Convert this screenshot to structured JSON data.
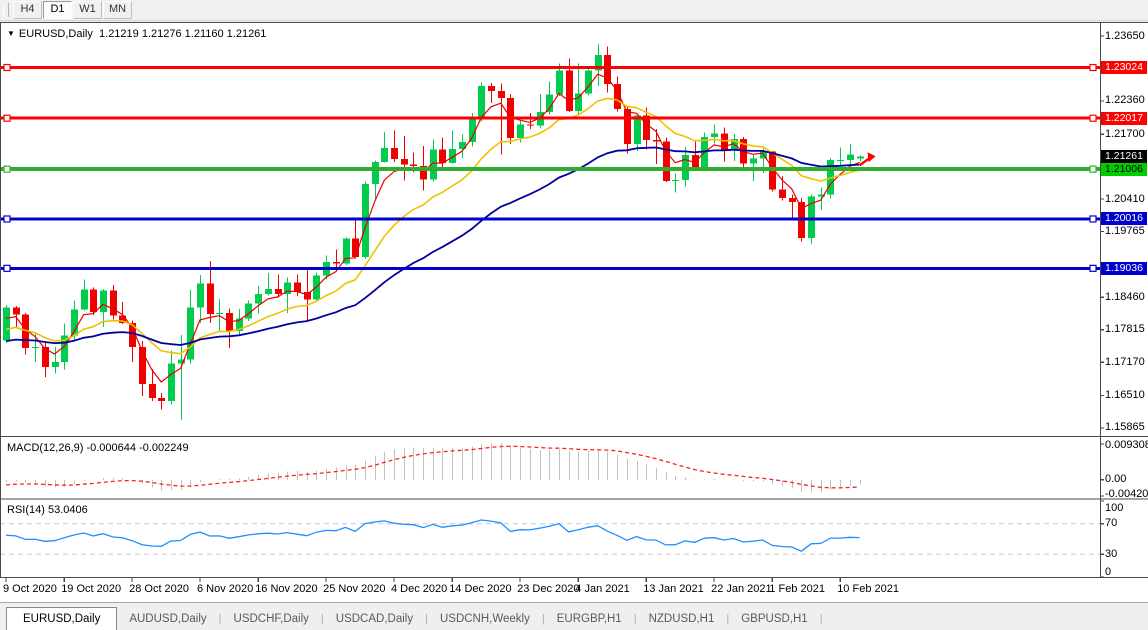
{
  "toolbar": {
    "buttons": [
      {
        "label": "H4",
        "active": false
      },
      {
        "label": "D1",
        "active": true
      },
      {
        "label": "W1",
        "active": false
      },
      {
        "label": "MN",
        "active": false
      }
    ]
  },
  "chart": {
    "title_symbol": "EURUSD,Daily",
    "title_ohlc": "1.21219 1.21276 1.21160 1.21261"
  },
  "chart_data": {
    "type": "candlestick",
    "symbol": "EURUSD",
    "timeframe": "Daily",
    "up_color": "#00cc4e",
    "down_color": "#f20000",
    "candles": [
      [
        1.176,
        1.1831,
        1.1755,
        1.1826
      ],
      [
        1.1826,
        1.1829,
        1.1785,
        1.1812
      ],
      [
        1.1812,
        1.1815,
        1.1732,
        1.1745
      ],
      [
        1.1745,
        1.1775,
        1.1718,
        1.1747
      ],
      [
        1.1747,
        1.1758,
        1.1688,
        1.1708
      ],
      [
        1.1708,
        1.1747,
        1.1695,
        1.1718
      ],
      [
        1.1718,
        1.1794,
        1.1703,
        1.177
      ],
      [
        1.177,
        1.184,
        1.176,
        1.1822
      ],
      [
        1.1822,
        1.1881,
        1.182,
        1.1862
      ],
      [
        1.1862,
        1.1866,
        1.1811,
        1.1817
      ],
      [
        1.1817,
        1.1863,
        1.1787,
        1.186
      ],
      [
        1.186,
        1.187,
        1.1802,
        1.181
      ],
      [
        1.181,
        1.1837,
        1.1793,
        1.1795
      ],
      [
        1.1795,
        1.18,
        1.1718,
        1.1747
      ],
      [
        1.1747,
        1.1759,
        1.165,
        1.1674
      ],
      [
        1.1674,
        1.1704,
        1.164,
        1.1646
      ],
      [
        1.1646,
        1.1656,
        1.1623,
        1.164
      ],
      [
        1.164,
        1.174,
        1.1633,
        1.1715
      ],
      [
        1.1715,
        1.1771,
        1.1602,
        1.1723
      ],
      [
        1.1723,
        1.1861,
        1.1715,
        1.1826
      ],
      [
        1.1826,
        1.189,
        1.1795,
        1.1873
      ],
      [
        1.1873,
        1.1918,
        1.1795,
        1.1813
      ],
      [
        1.1813,
        1.1843,
        1.178,
        1.1815
      ],
      [
        1.1815,
        1.1824,
        1.1745,
        1.1779
      ],
      [
        1.1779,
        1.1823,
        1.1771,
        1.1804
      ],
      [
        1.1804,
        1.184,
        1.1799,
        1.1834
      ],
      [
        1.1834,
        1.1869,
        1.1814,
        1.1853
      ],
      [
        1.1853,
        1.1894,
        1.185,
        1.1863
      ],
      [
        1.1863,
        1.1891,
        1.1846,
        1.1853
      ],
      [
        1.1853,
        1.1885,
        1.1815,
        1.1875
      ],
      [
        1.1875,
        1.1891,
        1.1849,
        1.1857
      ],
      [
        1.1857,
        1.1906,
        1.18,
        1.1842
      ],
      [
        1.1842,
        1.1895,
        1.1838,
        1.1889
      ],
      [
        1.1889,
        1.1929,
        1.1881,
        1.1916
      ],
      [
        1.1916,
        1.1941,
        1.1906,
        1.1913
      ],
      [
        1.1913,
        1.1965,
        1.191,
        1.1963
      ],
      [
        1.1963,
        1.2003,
        1.1923,
        1.1926
      ],
      [
        1.1926,
        1.2076,
        1.1922,
        1.2071
      ],
      [
        1.2071,
        1.2118,
        1.204,
        1.2115
      ],
      [
        1.2115,
        1.2174,
        1.2114,
        1.2143
      ],
      [
        1.2143,
        1.2177,
        1.2115,
        1.2121
      ],
      [
        1.2121,
        1.2166,
        1.2078,
        1.211
      ],
      [
        1.211,
        1.2134,
        1.2095,
        1.2107
      ],
      [
        1.2107,
        1.2147,
        1.2058,
        1.208
      ],
      [
        1.208,
        1.2159,
        1.2076,
        1.214
      ],
      [
        1.214,
        1.2163,
        1.2103,
        1.2113
      ],
      [
        1.2113,
        1.2177,
        1.2112,
        1.2141
      ],
      [
        1.2141,
        1.2169,
        1.2123,
        1.2154
      ],
      [
        1.2154,
        1.2212,
        1.2146,
        1.22
      ],
      [
        1.22,
        1.2273,
        1.2195,
        1.2266
      ],
      [
        1.2266,
        1.2272,
        1.2232,
        1.2256
      ],
      [
        1.2256,
        1.2271,
        1.213,
        1.2242
      ],
      [
        1.2242,
        1.225,
        1.2151,
        1.2162
      ],
      [
        1.2162,
        1.2196,
        1.2153,
        1.2189
      ],
      [
        1.2189,
        1.2212,
        1.218,
        1.2187
      ],
      [
        1.2187,
        1.225,
        1.2181,
        1.2214
      ],
      [
        1.2214,
        1.2275,
        1.2209,
        1.2249
      ],
      [
        1.2249,
        1.231,
        1.2246,
        1.2296
      ],
      [
        1.2296,
        1.232,
        1.2214,
        1.2216
      ],
      [
        1.2216,
        1.231,
        1.2208,
        1.2251
      ],
      [
        1.2251,
        1.2302,
        1.2247,
        1.2296
      ],
      [
        1.2296,
        1.2349,
        1.2266,
        1.2327
      ],
      [
        1.2327,
        1.2344,
        1.2253,
        1.227
      ],
      [
        1.227,
        1.2285,
        1.2215,
        1.222
      ],
      [
        1.222,
        1.2224,
        1.2132,
        1.2151
      ],
      [
        1.2151,
        1.2208,
        1.2137,
        1.2207
      ],
      [
        1.2207,
        1.2223,
        1.214,
        1.2158
      ],
      [
        1.2158,
        1.218,
        1.2111,
        1.2155
      ],
      [
        1.2155,
        1.2163,
        1.2075,
        1.2077
      ],
      [
        1.2077,
        1.2092,
        1.2054,
        1.2079
      ],
      [
        1.2079,
        1.2145,
        1.2066,
        1.2129
      ],
      [
        1.2129,
        1.2158,
        1.2101,
        1.2105
      ],
      [
        1.2105,
        1.2173,
        1.2103,
        1.2164
      ],
      [
        1.2164,
        1.2189,
        1.2152,
        1.2171
      ],
      [
        1.2171,
        1.2183,
        1.2116,
        1.214
      ],
      [
        1.214,
        1.217,
        1.2117,
        1.216
      ],
      [
        1.216,
        1.2164,
        1.2105,
        1.2112
      ],
      [
        1.2112,
        1.2131,
        1.2077,
        1.2122
      ],
      [
        1.2122,
        1.2142,
        1.2093,
        1.2136
      ],
      [
        1.2136,
        1.2137,
        1.2056,
        1.206
      ],
      [
        1.206,
        1.2087,
        1.2038,
        1.2043
      ],
      [
        1.2043,
        1.205,
        1.2003,
        1.2035
      ],
      [
        1.2035,
        1.2043,
        1.1957,
        1.1964
      ],
      [
        1.1964,
        1.205,
        1.1952,
        1.2046
      ],
      [
        1.2046,
        1.2064,
        1.2019,
        1.205
      ],
      [
        1.205,
        1.2123,
        1.2042,
        1.2119
      ],
      [
        1.2119,
        1.2144,
        1.2108,
        1.2119
      ],
      [
        1.2119,
        1.2151,
        1.211,
        1.213
      ],
      [
        1.21219,
        1.21276,
        1.2116,
        1.21261
      ]
    ],
    "price_ticks": [
      "1.23650",
      "1.22360",
      "1.21700",
      "1.20410",
      "1.19765",
      "1.18460",
      "1.17815",
      "1.17170",
      "1.16510",
      "1.15865"
    ],
    "hlines": [
      {
        "price": 1.23024,
        "label": "1.23024",
        "color": "#ff0000",
        "badge_bg": "#ff0000",
        "badge_fg": "#ffffff",
        "width": 3
      },
      {
        "price": 1.22017,
        "label": "1.22017",
        "color": "#ff0000",
        "badge_bg": "#ff0000",
        "badge_fg": "#ffffff",
        "width": 3
      },
      {
        "price": 1.21006,
        "label": "1.21006",
        "color": "#30ae30",
        "badge_bg": "#00cc00",
        "badge_fg": "#000000",
        "width": 4
      },
      {
        "price": 1.20016,
        "label": "1.20016",
        "color": "#0000cc",
        "badge_bg": "#0000cc",
        "badge_fg": "#ffffff",
        "width": 3
      },
      {
        "price": 1.19036,
        "label": "1.19036",
        "color": "#0000cc",
        "badge_bg": "#0000cc",
        "badge_fg": "#ffffff",
        "width": 3
      }
    ],
    "current_price": {
      "value": 1.21261,
      "label": "1.21261",
      "badge_bg": "#000000",
      "badge_fg": "#ffffff",
      "arrow_color": "#ff0000"
    },
    "moving_averages": [
      {
        "name": "ma-fast",
        "period": 4,
        "seed": 1.179,
        "color": "#e60000",
        "width": 1.2
      },
      {
        "name": "ma-medium",
        "period": 13,
        "seed": 1.1775,
        "color": "#eec200",
        "width": 1.6
      },
      {
        "name": "ma-slow",
        "period": 34,
        "seed": 1.1755,
        "color": "#0000a0",
        "width": 1.8
      }
    ],
    "macd": {
      "label": "MACD(12,26,9) -0.000644 -0.002249",
      "fast": 12,
      "slow": 26,
      "signal": 9,
      "seed_fast": 1.1788,
      "seed_slow": 1.1798,
      "seed_signal": -0.0015,
      "axis_max": 0.009308,
      "axis_min": -0.004204,
      "axis_labels": [
        "0.009308",
        "0.00",
        "-0.004204"
      ],
      "bar_color": "#c0c0c0",
      "signal_color": "#ff2020"
    },
    "rsi": {
      "label": "RSI(14) 53.0406",
      "period": 14,
      "seed_gain": 0.0033,
      "seed_loss": 0.0027,
      "levels": [
        "100",
        "70",
        "30",
        "0"
      ],
      "dashed_levels": [
        70,
        30
      ],
      "line_color": "#1e90ff",
      "level_line_color": "#c8c8c8"
    },
    "date_ticks": [
      {
        "label": "9 Oct 2020",
        "bar": 0
      },
      {
        "label": "19 Oct 2020",
        "bar": 6
      },
      {
        "label": "28 Oct 2020",
        "bar": 13
      },
      {
        "label": "6 Nov 2020",
        "bar": 20
      },
      {
        "label": "16 Nov 2020",
        "bar": 26
      },
      {
        "label": "25 Nov 2020",
        "bar": 33
      },
      {
        "label": "4 Dec 2020",
        "bar": 40
      },
      {
        "label": "14 Dec 2020",
        "bar": 46
      },
      {
        "label": "23 Dec 2020",
        "bar": 53
      },
      {
        "label": "4 Jan 2021",
        "bar": 59
      },
      {
        "label": "13 Jan 2021",
        "bar": 66
      },
      {
        "label": "22 Jan 2021",
        "bar": 73
      },
      {
        "label": "1 Feb 2021",
        "bar": 79
      },
      {
        "label": "10 Feb 2021",
        "bar": 86
      }
    ]
  },
  "tabs": [
    {
      "label": "EURUSD,Daily",
      "active": true
    },
    {
      "label": "AUDUSD,Daily",
      "active": false
    },
    {
      "label": "USDCHF,Daily",
      "active": false
    },
    {
      "label": "USDCAD,Daily",
      "active": false
    },
    {
      "label": "USDCNH,Weekly",
      "active": false
    },
    {
      "label": "EURGBP,H1",
      "active": false
    },
    {
      "label": "NZDUSD,H1",
      "active": false
    },
    {
      "label": "GBPUSD,H1",
      "active": false
    }
  ]
}
